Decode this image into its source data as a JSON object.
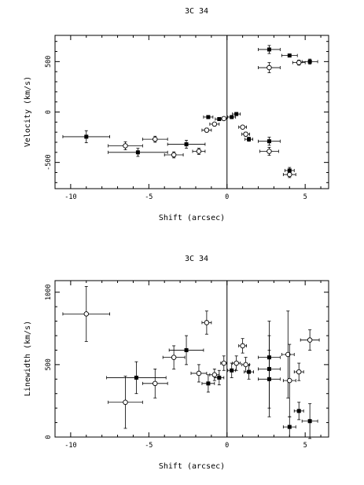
{
  "chart_data": [
    {
      "type": "scatter",
      "title": "3C 34",
      "xlabel": "Shift (arcsec)",
      "ylabel": "Velocity (km/s)",
      "xlim": [
        -11,
        6.5
      ],
      "ylim": [
        -760,
        760
      ],
      "xticks": [
        -10,
        -5,
        0,
        5
      ],
      "yticks": [
        -500,
        0,
        500
      ],
      "xtick_labels": [
        "-10",
        "-5",
        "0",
        "5"
      ],
      "ytick_labels": [
        "-500",
        "0",
        "500"
      ],
      "vertical_line_at_x": 0,
      "grid": false,
      "series": [
        {
          "marker": "filled",
          "points": [
            {
              "x": -9.0,
              "y": -245,
              "xerr": 1.5,
              "yerr": 60
            },
            {
              "x": -5.7,
              "y": -400,
              "xerr": 1.9,
              "yerr": 40
            },
            {
              "x": -2.6,
              "y": -320,
              "xerr": 1.2,
              "yerr": 40
            },
            {
              "x": -1.2,
              "y": -50,
              "xerr": 0.3,
              "yerr": 15
            },
            {
              "x": -0.5,
              "y": -70,
              "xerr": 0.25,
              "yerr": 15
            },
            {
              "x": 0.3,
              "y": -50,
              "xerr": 0.25,
              "yerr": 15
            },
            {
              "x": 0.6,
              "y": -20,
              "xerr": 0.25,
              "yerr": 15
            },
            {
              "x": 1.4,
              "y": -270,
              "xerr": 0.25,
              "yerr": 20
            },
            {
              "x": 2.7,
              "y": -290,
              "xerr": 0.7,
              "yerr": 40
            },
            {
              "x": 2.7,
              "y": 620,
              "xerr": 0.7,
              "yerr": 40
            },
            {
              "x": 4.0,
              "y": 560,
              "xerr": 0.5,
              "yerr": 15
            },
            {
              "x": 4.0,
              "y": -580,
              "xerr": 0.3,
              "yerr": 30
            },
            {
              "x": 5.3,
              "y": 500,
              "xerr": 0.5,
              "yerr": 25
            }
          ]
        },
        {
          "marker": "open",
          "points": [
            {
              "x": -6.5,
              "y": -335,
              "xerr": 1.1,
              "yerr": 40
            },
            {
              "x": -4.6,
              "y": -270,
              "xerr": 0.8,
              "yerr": 30
            },
            {
              "x": -3.4,
              "y": -425,
              "xerr": 0.6,
              "yerr": 30
            },
            {
              "x": -1.8,
              "y": -390,
              "xerr": 0.4,
              "yerr": 30
            },
            {
              "x": -1.3,
              "y": -180,
              "xerr": 0.3,
              "yerr": 20
            },
            {
              "x": -0.8,
              "y": -120,
              "xerr": 0.3,
              "yerr": 15
            },
            {
              "x": -0.2,
              "y": -65,
              "xerr": 0.2,
              "yerr": 15
            },
            {
              "x": 1.0,
              "y": -150,
              "xerr": 0.25,
              "yerr": 15
            },
            {
              "x": 1.2,
              "y": -220,
              "xerr": 0.25,
              "yerr": 20
            },
            {
              "x": 2.7,
              "y": -390,
              "xerr": 0.6,
              "yerr": 40
            },
            {
              "x": 2.7,
              "y": 440,
              "xerr": 0.7,
              "yerr": 50
            },
            {
              "x": 4.0,
              "y": -620,
              "xerr": 0.4,
              "yerr": 30
            },
            {
              "x": 4.6,
              "y": 490,
              "xerr": 0.4,
              "yerr": 25
            }
          ]
        }
      ]
    },
    {
      "type": "scatter",
      "title": "3C 34",
      "xlabel": "Shift (arcsec)",
      "ylabel": "Linewidth (km/s)",
      "xlim": [
        -11,
        6.5
      ],
      "ylim": [
        0,
        1080
      ],
      "xticks": [
        -10,
        -5,
        0,
        5
      ],
      "yticks": [
        0,
        500,
        1000
      ],
      "xtick_labels": [
        "-10",
        "-5",
        "0",
        "5"
      ],
      "ytick_labels": [
        "0",
        "500",
        "1000"
      ],
      "vertical_line_at_x": 0,
      "grid": false,
      "series": [
        {
          "marker": "filled",
          "points": [
            {
              "x": -5.8,
              "y": 410,
              "xerr": 1.9,
              "yerr": 110
            },
            {
              "x": -2.6,
              "y": 600,
              "xerr": 1.1,
              "yerr": 100
            },
            {
              "x": -1.2,
              "y": 370,
              "xerr": 0.4,
              "yerr": 60
            },
            {
              "x": -0.5,
              "y": 410,
              "xerr": 0.3,
              "yerr": 50
            },
            {
              "x": 0.3,
              "y": 460,
              "xerr": 0.25,
              "yerr": 50
            },
            {
              "x": 1.4,
              "y": 450,
              "xerr": 0.3,
              "yerr": 50
            },
            {
              "x": 2.7,
              "y": 550,
              "xerr": 0.7,
              "yerr": 150
            },
            {
              "x": 2.7,
              "y": 470,
              "xerr": 0.7,
              "yerr": 330
            },
            {
              "x": 2.7,
              "y": 400,
              "xerr": 0.7,
              "yerr": 200
            },
            {
              "x": 4.0,
              "y": 70,
              "xerr": 0.4,
              "yerr": 70
            },
            {
              "x": 4.6,
              "y": 180,
              "xerr": 0.3,
              "yerr": 60
            },
            {
              "x": 5.3,
              "y": 110,
              "xerr": 0.5,
              "yerr": 120
            }
          ]
        },
        {
          "marker": "open",
          "points": [
            {
              "x": -9.0,
              "y": 850,
              "xerr": 1.5,
              "yerr": 190
            },
            {
              "x": -6.5,
              "y": 240,
              "xerr": 1.1,
              "yerr": 180
            },
            {
              "x": -4.6,
              "y": 370,
              "xerr": 0.8,
              "yerr": 100
            },
            {
              "x": -3.4,
              "y": 550,
              "xerr": 0.7,
              "yerr": 80
            },
            {
              "x": -1.8,
              "y": 440,
              "xerr": 0.5,
              "yerr": 60
            },
            {
              "x": -1.3,
              "y": 790,
              "xerr": 0.3,
              "yerr": 80
            },
            {
              "x": -0.8,
              "y": 430,
              "xerr": 0.3,
              "yerr": 40
            },
            {
              "x": -0.2,
              "y": 510,
              "xerr": 0.2,
              "yerr": 50
            },
            {
              "x": 0.6,
              "y": 510,
              "xerr": 0.25,
              "yerr": 50
            },
            {
              "x": 1.0,
              "y": 630,
              "xerr": 0.25,
              "yerr": 50
            },
            {
              "x": 1.2,
              "y": 500,
              "xerr": 0.25,
              "yerr": 50
            },
            {
              "x": 3.9,
              "y": 570,
              "xerr": 0.4,
              "yerr": 300
            },
            {
              "x": 4.0,
              "y": 390,
              "xerr": 0.4,
              "yerr": 250
            },
            {
              "x": 4.6,
              "y": 450,
              "xerr": 0.3,
              "yerr": 60
            },
            {
              "x": 5.3,
              "y": 670,
              "xerr": 0.6,
              "yerr": 70
            }
          ]
        }
      ]
    }
  ]
}
